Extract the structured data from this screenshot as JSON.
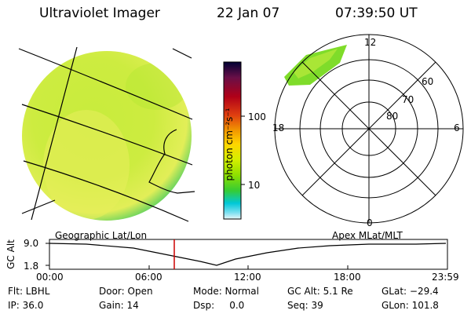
{
  "header": {
    "instrument": "Ultraviolet Imager",
    "date": "22 Jan 07",
    "time": "07:39:50 UT"
  },
  "colorbar": {
    "unit_label": "photon cm⁻²s⁻¹",
    "ticks": [
      "100",
      "10"
    ],
    "scale": "log",
    "colors": [
      "#000033",
      "#6a0f47",
      "#b00018",
      "#e04010",
      "#f29a00",
      "#ffd400",
      "#d6ef00",
      "#8ee000",
      "#35cc35",
      "#00c8d8",
      "#7de0f0",
      "#e8f6f8"
    ]
  },
  "image_panel": {
    "description_colors": {
      "disk_main": "#c8ec3c",
      "disk_light": "#e6ef5a",
      "disk_edge": "#49cc60"
    }
  },
  "polar_plot": {
    "top_label": "12",
    "bottom_label": "0",
    "left_label": "18",
    "right_label": "6",
    "ring_labels": [
      "60",
      "70",
      "80"
    ]
  },
  "timeline": {
    "left_title": "Geographic Lat/Lon",
    "right_title": "Apex MLat/MLT",
    "y_axis_label": "GC Alt",
    "y_max": "9.0",
    "y_min": "1.8",
    "x_ticks": [
      "00:00",
      "06:00",
      "12:00",
      "18:00",
      "23:59"
    ],
    "current_time_marker_color": "#cc0000"
  },
  "footer": {
    "row1": [
      {
        "label": "Flt: LBHL"
      },
      {
        "label": "Door: Open"
      },
      {
        "label": "Mode: Normal"
      },
      {
        "label": "GC Alt: 5.1 Re"
      },
      {
        "label": "GLat: −29.4"
      }
    ],
    "row2": [
      {
        "label": "IP: 36.0"
      },
      {
        "label": "Gain: 14"
      },
      {
        "label": "Dsp:     0.0"
      },
      {
        "label": "Seq: 39"
      },
      {
        "label": "GLon: 101.8"
      }
    ]
  }
}
